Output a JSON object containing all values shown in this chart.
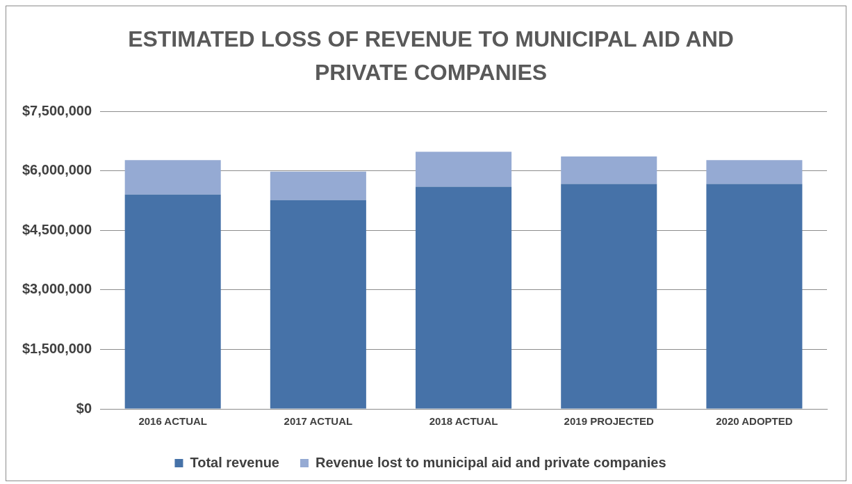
{
  "chart_data": {
    "type": "bar",
    "title": "ESTIMATED LOSS OF REVENUE TO MUNICIPAL AID AND PRIVATE COMPANIES",
    "categories": [
      "2016 ACTUAL",
      "2017 ACTUAL",
      "2018 ACTUAL",
      "2019 PROJECTED",
      "2020 ADOPTED"
    ],
    "stacked": true,
    "series": [
      {
        "name": "Total revenue",
        "color": "#4672a8",
        "values": [
          5400000,
          5260000,
          5600000,
          5670000,
          5670000
        ]
      },
      {
        "name": "Revenue lost to municipal aid and private companies",
        "color": "#95aad3",
        "values": [
          870000,
          720000,
          880000,
          690000,
          600000
        ]
      }
    ],
    "ylim": [
      0,
      7500000
    ],
    "yticks": [
      {
        "value": 0,
        "label": "$0"
      },
      {
        "value": 1500000,
        "label": "$1,500,000"
      },
      {
        "value": 3000000,
        "label": "$3,000,000"
      },
      {
        "value": 4500000,
        "label": "$4,500,000"
      },
      {
        "value": 6000000,
        "label": "$6,000,000"
      },
      {
        "value": 7500000,
        "label": "$7,500,000"
      }
    ],
    "grid": "y",
    "legend": "bottom"
  }
}
